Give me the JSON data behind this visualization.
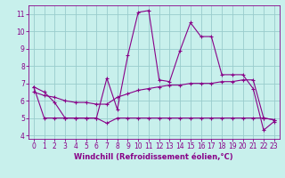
{
  "x": [
    0,
    1,
    2,
    3,
    4,
    5,
    6,
    7,
    8,
    9,
    10,
    11,
    12,
    13,
    14,
    15,
    16,
    17,
    18,
    19,
    20,
    21,
    22,
    23
  ],
  "y_upper": [
    6.8,
    6.5,
    5.9,
    5.0,
    5.0,
    5.0,
    5.0,
    7.3,
    5.5,
    8.6,
    11.1,
    11.2,
    7.2,
    7.1,
    8.9,
    10.5,
    9.7,
    9.7,
    7.5,
    7.5,
    7.5,
    6.7,
    4.3,
    4.8
  ],
  "y_mid": [
    6.5,
    6.3,
    6.2,
    6.0,
    5.9,
    5.9,
    5.8,
    5.8,
    6.2,
    6.4,
    6.6,
    6.7,
    6.8,
    6.9,
    6.9,
    7.0,
    7.0,
    7.0,
    7.1,
    7.1,
    7.2,
    7.2,
    5.0,
    4.9
  ],
  "y_lower": [
    6.8,
    5.0,
    5.0,
    5.0,
    5.0,
    5.0,
    5.0,
    4.7,
    5.0,
    5.0,
    5.0,
    5.0,
    5.0,
    5.0,
    5.0,
    5.0,
    5.0,
    5.0,
    5.0,
    5.0,
    5.0,
    5.0,
    5.0,
    4.9
  ],
  "line_color": "#880088",
  "marker": "+",
  "bg_color": "#c8f0ec",
  "grid_color": "#99cccc",
  "xlabel": "Windchill (Refroidissement éolien,°C)",
  "xlim_min": -0.5,
  "xlim_max": 23.5,
  "ylim_min": 3.8,
  "ylim_max": 11.5,
  "yticks": [
    4,
    5,
    6,
    7,
    8,
    9,
    10,
    11
  ],
  "xticks": [
    0,
    1,
    2,
    3,
    4,
    5,
    6,
    7,
    8,
    9,
    10,
    11,
    12,
    13,
    14,
    15,
    16,
    17,
    18,
    19,
    20,
    21,
    22,
    23
  ],
  "tick_color": "#880088",
  "label_color": "#880088",
  "font_size": 5.5,
  "xlabel_fontsize": 6.0,
  "markersize": 3,
  "linewidth": 0.8
}
